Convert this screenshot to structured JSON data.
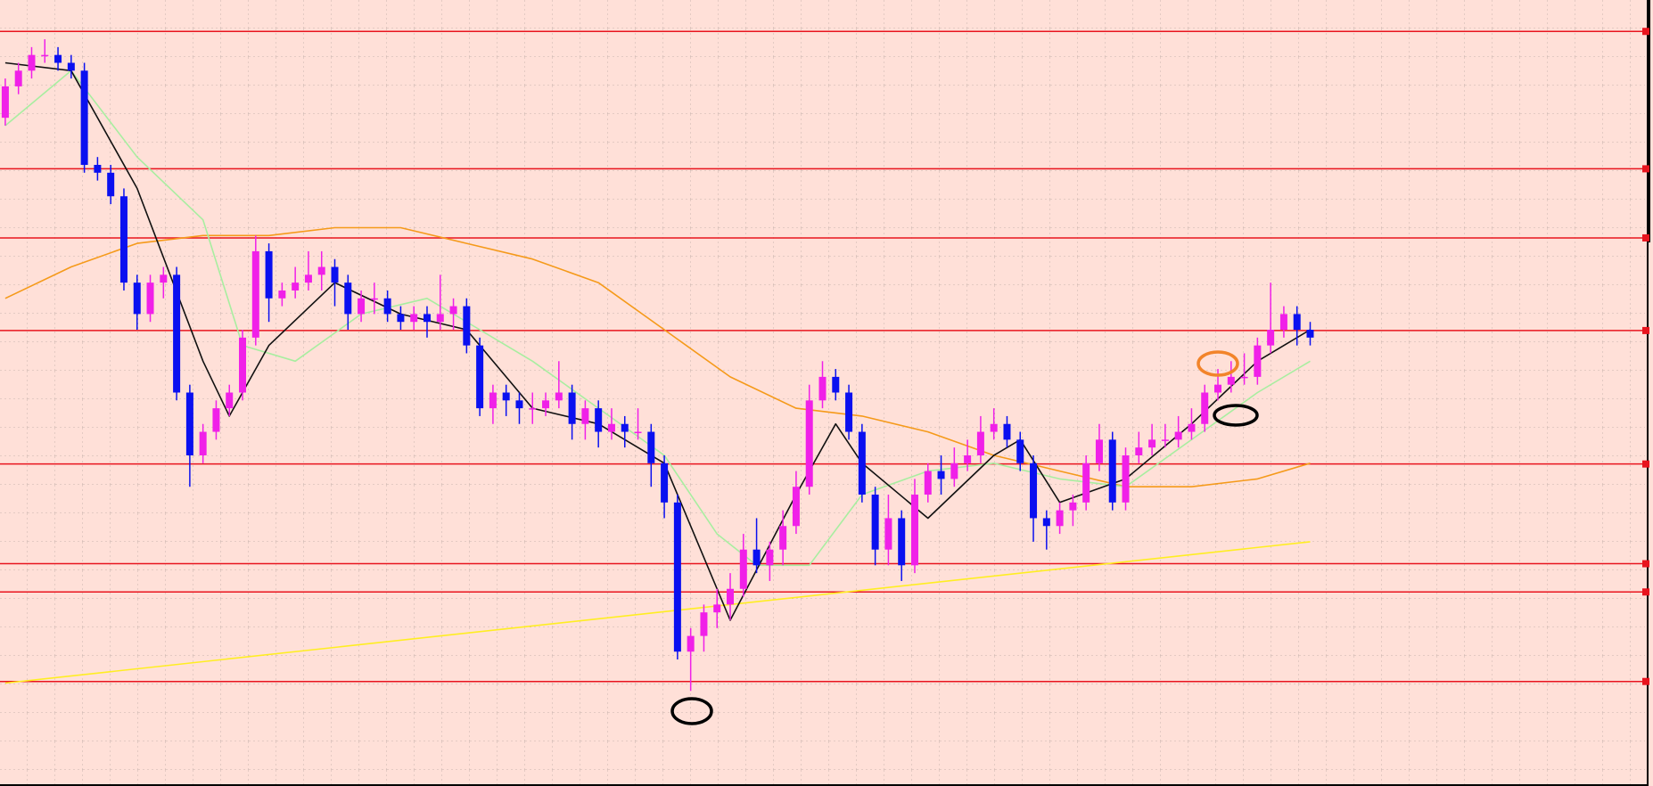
{
  "chart_data": {
    "type": "candlestick",
    "ylim": [
      0,
      100
    ],
    "xlim": [
      -0.4,
      124.4
    ],
    "bull_color": "#f020e8",
    "bear_color": "#0a10f0",
    "level_color": "#e8141e",
    "levels": [
      96,
      78.5,
      69.7,
      57.9,
      40.9,
      28.2,
      24.6,
      13.2
    ],
    "open": [
      85,
      89,
      91,
      93,
      93,
      92,
      91,
      79,
      78,
      75,
      64,
      60,
      64,
      65,
      50,
      42,
      45,
      48,
      50,
      57,
      68,
      62,
      63,
      64,
      65,
      66,
      64,
      60,
      62,
      62,
      60,
      59,
      60,
      59,
      60,
      61,
      56,
      48,
      50,
      49,
      48,
      48,
      49,
      50,
      46,
      48,
      45,
      46,
      45,
      45,
      41,
      36,
      17,
      19,
      22,
      23,
      25,
      30,
      28,
      30,
      33,
      38,
      49,
      52,
      50,
      45,
      37,
      30,
      34,
      28,
      37,
      40,
      39,
      41,
      42,
      45,
      46,
      44,
      41,
      34,
      33,
      35,
      36,
      41,
      44,
      36,
      42,
      43,
      44,
      44,
      45,
      46,
      50,
      51,
      52,
      52,
      56,
      58,
      60,
      58
    ],
    "high": [
      90,
      92,
      94,
      95,
      94,
      93,
      92,
      80,
      79,
      76,
      65,
      65,
      66,
      66,
      51,
      46,
      49,
      51,
      58,
      70,
      69,
      64,
      66,
      68,
      68,
      67,
      65,
      63,
      64,
      63,
      61,
      61,
      61,
      65,
      62,
      62,
      57,
      51,
      51,
      50,
      50,
      50,
      54,
      51,
      49,
      49,
      48,
      47,
      48,
      46,
      42,
      37,
      20,
      23,
      25,
      27,
      32,
      34,
      31,
      35,
      40,
      51,
      54,
      53,
      51,
      46,
      38,
      37,
      35,
      39,
      41,
      42,
      43,
      44,
      47,
      48,
      47,
      45,
      42,
      35,
      36,
      37,
      42,
      46,
      45,
      43,
      45,
      46,
      46,
      47,
      48,
      51,
      53,
      54,
      55,
      57,
      64,
      61,
      61,
      59
    ],
    "low": [
      84,
      88,
      90,
      92,
      91,
      90,
      78,
      77,
      74,
      63,
      58,
      59,
      62,
      49,
      38,
      41,
      44,
      47,
      49,
      56,
      59,
      61,
      62,
      63,
      63,
      61,
      58,
      59,
      60,
      59,
      58,
      58,
      57,
      58,
      58,
      55,
      47,
      46,
      47,
      46,
      46,
      47,
      48,
      44,
      44,
      43,
      44,
      43,
      44,
      38,
      34,
      16,
      12,
      17,
      20,
      21,
      24,
      27,
      26,
      28,
      32,
      37,
      48,
      49,
      44,
      36,
      28,
      28,
      26,
      27,
      36,
      37,
      38,
      40,
      41,
      44,
      43,
      40,
      31,
      30,
      32,
      33,
      35,
      40,
      35,
      35,
      41,
      42,
      43,
      43,
      44,
      45,
      49,
      50,
      51,
      51,
      55,
      57,
      56,
      56
    ],
    "close": [
      89,
      91,
      93,
      93,
      92,
      91,
      79,
      78,
      75,
      64,
      60,
      64,
      65,
      50,
      42,
      45,
      48,
      50,
      57,
      68,
      62,
      63,
      64,
      65,
      66,
      64,
      60,
      62,
      62,
      60,
      59,
      60,
      59,
      60,
      61,
      56,
      48,
      50,
      49,
      48,
      48,
      49,
      50,
      46,
      48,
      45,
      46,
      45,
      45,
      41,
      36,
      17,
      19,
      22,
      23,
      25,
      30,
      28,
      30,
      33,
      38,
      49,
      52,
      50,
      45,
      37,
      30,
      34,
      28,
      37,
      40,
      39,
      41,
      42,
      45,
      46,
      44,
      41,
      34,
      33,
      35,
      36,
      41,
      44,
      36,
      42,
      43,
      44,
      44,
      45,
      46,
      50,
      51,
      52,
      52,
      56,
      58,
      60,
      58,
      57
    ],
    "series": [
      {
        "color": "#ffee22",
        "x": [
          0,
          99
        ],
        "values": [
          13,
          31
        ]
      },
      {
        "color": "#f59a1a",
        "x": [
          0,
          5,
          10,
          15,
          20,
          25,
          30,
          35,
          40,
          45,
          50,
          55,
          60,
          65,
          70,
          75,
          80,
          85,
          90,
          95,
          99
        ],
        "values": [
          62,
          66,
          69,
          70,
          70,
          71,
          71,
          69,
          67,
          64,
          58,
          52,
          48,
          47,
          45,
          42,
          40,
          38,
          38,
          39,
          41
        ]
      },
      {
        "color": "#a8eea0",
        "x": [
          0,
          5,
          10,
          15,
          18,
          22,
          27,
          32,
          36,
          40,
          45,
          50,
          54,
          57,
          61,
          65,
          70,
          75,
          80,
          85,
          90,
          95,
          99
        ],
        "values": [
          84,
          91,
          80,
          72,
          56,
          54,
          60,
          62,
          58,
          54,
          48,
          42,
          32,
          28,
          28,
          37,
          40,
          41,
          39,
          38,
          44,
          50,
          54
        ]
      },
      {
        "color": "#111111",
        "x": [
          0,
          5,
          10,
          15,
          17,
          20,
          25,
          30,
          35,
          40,
          45,
          50,
          55,
          60,
          63,
          65,
          70,
          75,
          77,
          80,
          85,
          90,
          95,
          99
        ],
        "values": [
          92,
          91,
          76,
          54,
          47,
          56,
          64,
          60,
          58,
          48,
          46,
          41,
          21,
          37,
          46,
          41,
          34,
          42,
          44,
          36,
          39,
          46,
          54,
          58
        ]
      }
    ]
  }
}
